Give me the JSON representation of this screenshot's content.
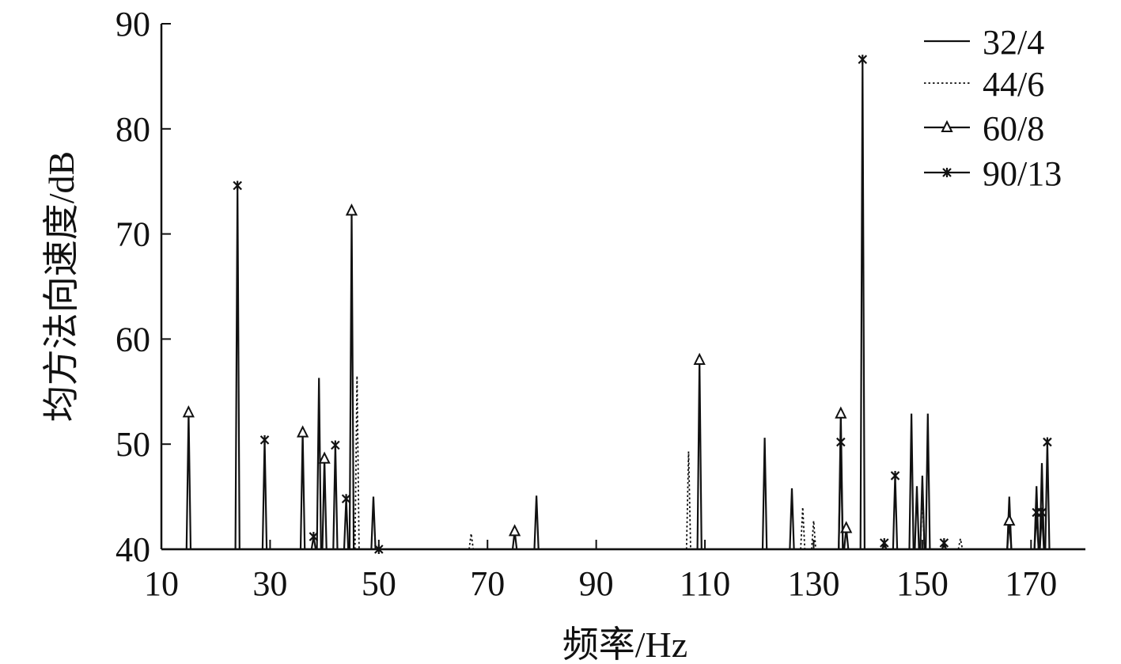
{
  "chart_data": {
    "type": "line",
    "title": "",
    "xlabel": "频率/Hz",
    "ylabel": "均方法向速度/dB",
    "xlim": [
      10,
      180
    ],
    "ylim": [
      40,
      90
    ],
    "x_ticks": [
      10,
      30,
      50,
      70,
      90,
      110,
      130,
      150,
      170
    ],
    "y_ticks": [
      40,
      50,
      60,
      70,
      80,
      90
    ],
    "grid": false,
    "legend_position": "top-right",
    "baseline": 40,
    "series": [
      {
        "name": "32/4",
        "style": "solid",
        "marker": "none",
        "peaks": [
          {
            "x": 39,
            "y": 56.3
          },
          {
            "x": 49,
            "y": 45.0
          },
          {
            "x": 79,
            "y": 45.1
          },
          {
            "x": 121,
            "y": 50.6
          },
          {
            "x": 126,
            "y": 45.8
          },
          {
            "x": 148,
            "y": 52.9
          },
          {
            "x": 149,
            "y": 46.0
          },
          {
            "x": 150,
            "y": 47.0
          },
          {
            "x": 151,
            "y": 52.9
          },
          {
            "x": 166,
            "y": 45.0
          },
          {
            "x": 171,
            "y": 46.0
          },
          {
            "x": 172,
            "y": 48.2
          }
        ]
      },
      {
        "name": "44/6",
        "style": "dotted",
        "marker": "none",
        "peaks": [
          {
            "x": 46,
            "y": 56.5
          },
          {
            "x": 67,
            "y": 41.5
          },
          {
            "x": 107,
            "y": 49.3
          },
          {
            "x": 128,
            "y": 44.0
          },
          {
            "x": 130,
            "y": 42.7
          },
          {
            "x": 150,
            "y": 45.5
          },
          {
            "x": 157,
            "y": 41.0
          }
        ]
      },
      {
        "name": "60/8",
        "style": "solid",
        "marker": "triangle",
        "peaks": [
          {
            "x": 15,
            "y": 53.0
          },
          {
            "x": 36,
            "y": 51.1
          },
          {
            "x": 40,
            "y": 48.6
          },
          {
            "x": 45,
            "y": 72.2
          },
          {
            "x": 75,
            "y": 41.7
          },
          {
            "x": 109,
            "y": 58.0
          },
          {
            "x": 135,
            "y": 52.9
          },
          {
            "x": 136,
            "y": 42.0
          },
          {
            "x": 166,
            "y": 42.7
          }
        ]
      },
      {
        "name": "90/13",
        "style": "solid",
        "marker": "star",
        "peaks": [
          {
            "x": 24,
            "y": 74.6
          },
          {
            "x": 29,
            "y": 50.4
          },
          {
            "x": 38,
            "y": 41.2
          },
          {
            "x": 42,
            "y": 49.9
          },
          {
            "x": 44,
            "y": 44.8
          },
          {
            "x": 50,
            "y": 40.0
          },
          {
            "x": 135,
            "y": 50.2
          },
          {
            "x": 139,
            "y": 86.6
          },
          {
            "x": 143,
            "y": 40.6
          },
          {
            "x": 145,
            "y": 47.0
          },
          {
            "x": 154,
            "y": 40.6
          },
          {
            "x": 171,
            "y": 43.5
          },
          {
            "x": 172,
            "y": 43.5
          },
          {
            "x": 173,
            "y": 50.2
          }
        ]
      }
    ]
  }
}
